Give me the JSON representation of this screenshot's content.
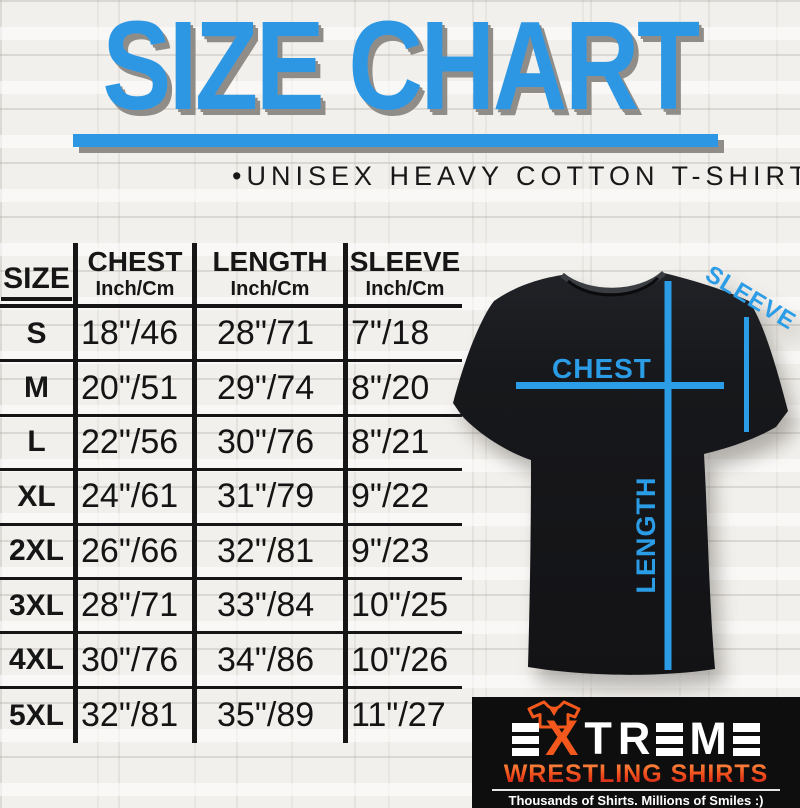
{
  "header": {
    "title": "SIZE CHART",
    "bullet": "•",
    "subtitle": "UNISEX HEAVY COTTON T-SHIRT"
  },
  "table": {
    "size_header": "SIZE",
    "columns": [
      {
        "name": "CHEST",
        "unit": "Inch/Cm"
      },
      {
        "name": "LENGTH",
        "unit": "Inch/Cm"
      },
      {
        "name": "SLEEVE",
        "unit": "Inch/Cm"
      }
    ]
  },
  "chart_data": {
    "type": "table",
    "title": "SIZE CHART",
    "subtitle": "UNISEX HEAVY COTTON T-SHIRT",
    "columns": [
      "SIZE",
      "CHEST Inch/Cm",
      "LENGTH Inch/Cm",
      "SLEEVE Inch/Cm"
    ],
    "rows": [
      [
        "S",
        "18\"/46",
        "28\"/71",
        "7\"/18"
      ],
      [
        "M",
        "20\"/51",
        "29\"/74",
        "8\"/20"
      ],
      [
        "L",
        "22\"/56",
        "30\"/76",
        "8\"/21"
      ],
      [
        "XL",
        "24\"/61",
        "31\"/79",
        "9\"/22"
      ],
      [
        "2XL",
        "26\"/66",
        "32\"/81",
        "9\"/23"
      ],
      [
        "3XL",
        "28\"/71",
        "33\"/84",
        "10\"/25"
      ],
      [
        "4XL",
        "30\"/76",
        "34\"/86",
        "10\"/26"
      ],
      [
        "5XL",
        "32\"/81",
        "35\"/89",
        "11\"/27"
      ]
    ]
  },
  "diagram": {
    "chest_label": "CHEST",
    "length_label": "LENGTH",
    "sleeve_label": "SLEEVE"
  },
  "logo": {
    "brand_top": "EXTREME",
    "brand_bottom": "WRESTLING SHIRTS",
    "tagline": "Thousands of Shirts. Millions of Smiles :)"
  },
  "colors": {
    "accent_blue": "#2e97e3",
    "diagram_blue": "#2b9ce6",
    "shadow_gray": "#908d88",
    "logo_orange": "#f4581c",
    "logo_red": "#c31217",
    "shirt_black": "#16171a"
  }
}
